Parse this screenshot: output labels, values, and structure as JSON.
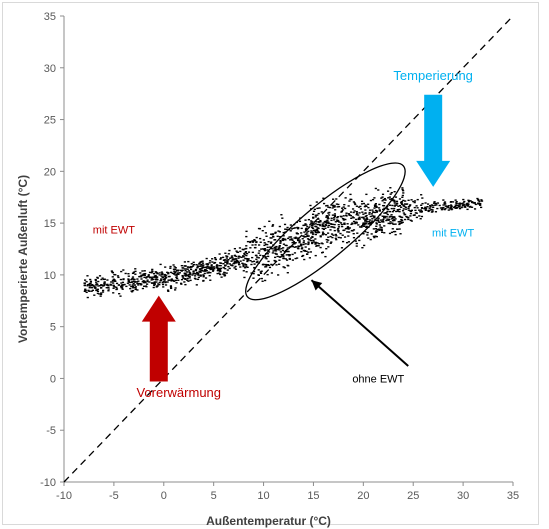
{
  "chart_data": {
    "type": "scatter",
    "xlabel": "Außentemperatur (°C)",
    "ylabel": "Vortemperierte Außenluft (°C)",
    "xlim": [
      -10,
      35
    ],
    "ylim": [
      -10,
      35
    ],
    "xticks": [
      "-10",
      "-5",
      "0",
      "5",
      "10",
      "15",
      "20",
      "25",
      "30",
      "35"
    ],
    "yticks": [
      "-10",
      "-5",
      "0",
      "5",
      "10",
      "15",
      "20",
      "25",
      "30",
      "35"
    ],
    "grid": false,
    "legend": "none",
    "reference_line": {
      "x": [
        -10,
        35
      ],
      "y": [
        -10,
        35
      ],
      "style": "dashed",
      "color": "#000000"
    },
    "cloud_trend": [
      {
        "x": -8,
        "y": 8.8
      },
      {
        "x": -5,
        "y": 9.2
      },
      {
        "x": 0,
        "y": 9.8
      },
      {
        "x": 5,
        "y": 10.8
      },
      {
        "x": 10,
        "y": 12.2
      },
      {
        "x": 15,
        "y": 14.3
      },
      {
        "x": 20,
        "y": 15.5
      },
      {
        "x": 25,
        "y": 16.4
      },
      {
        "x": 32,
        "y": 16.9
      }
    ],
    "ellipse": {
      "cx": 16.2,
      "cy": 14.2,
      "rx": 10.2,
      "ry": 2.6,
      "angle_deg": 40
    },
    "annotations": {
      "mit_ewt_left": {
        "text": "mit EWT",
        "x": -5,
        "y": 14,
        "color": "#c00000"
      },
      "mit_ewt_right": {
        "text": "mit EWT",
        "x": 29,
        "y": 13.7,
        "color": "#00b0f0"
      },
      "temperierung": {
        "text": "Temperierung",
        "x": 27,
        "y": 28.8,
        "color": "#00b0f0"
      },
      "vorerwaermung": {
        "text": "Vorerwärmung",
        "x": 1.5,
        "y": -1.8,
        "color": "#c00000"
      },
      "ohne_ewt": {
        "text": "ohne EWT",
        "x": 21.5,
        "y": -0.4,
        "color": "#000000"
      }
    },
    "arrows": {
      "red_up": {
        "x": -0.5,
        "y_from": -0.3,
        "y_to": 8,
        "color": "#c00000"
      },
      "blue_down": {
        "x": 27,
        "y_from": 27.4,
        "y_to": 18.5,
        "color": "#00b0f0"
      },
      "black_pointer": {
        "x_from": 24.5,
        "y_from": 1.2,
        "x_to": 14.8,
        "y_to": 9.5,
        "color": "#000000"
      }
    }
  }
}
